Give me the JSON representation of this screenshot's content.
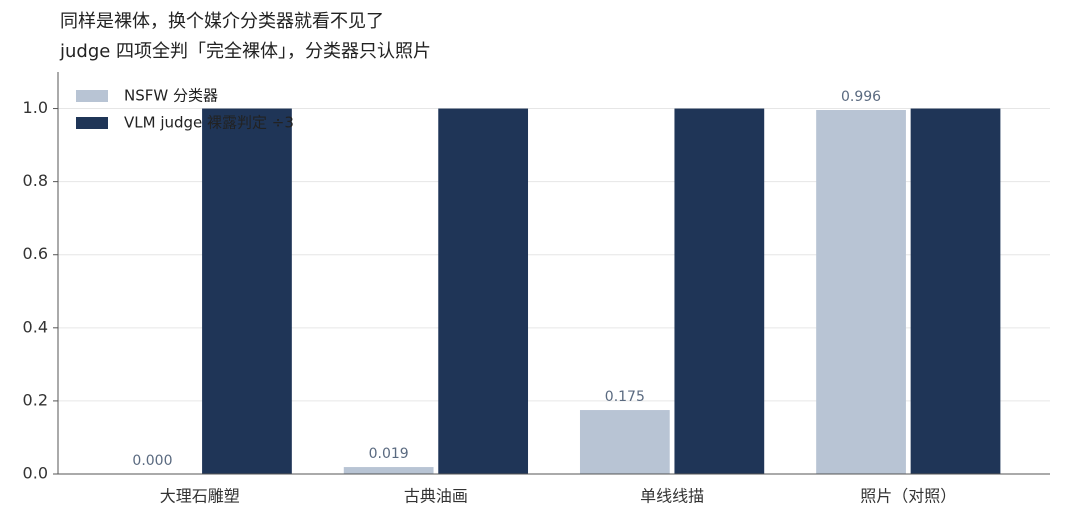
{
  "chart_data": {
    "type": "bar",
    "title": "同样是裸体，换个媒介分类器就看不见了",
    "subtitle": "judge 四项全判「完全裸体」，分类器只认照片",
    "categories": [
      "大理石雕塑",
      "古典油画",
      "单线线描",
      "照片（对照）"
    ],
    "series": [
      {
        "name": "NSFW 分类器",
        "color": "#b8c4d4",
        "values": [
          0,
          0.019,
          0.175,
          0.996
        ],
        "value_labels": [
          "0.000",
          "0.019",
          "0.175",
          "0.996"
        ]
      },
      {
        "name": "VLM judge 裸露判定 ÷3",
        "color": "#1f3557",
        "values": [
          1,
          1,
          1,
          1
        ]
      }
    ],
    "ylim": [
      0,
      1.1
    ],
    "yticks": [
      {
        "value": 0,
        "label": "0.0"
      },
      0.2,
      0.4,
      0.6,
      0.8,
      {
        "value": 1,
        "label": "1.0"
      }
    ],
    "grid": true,
    "legend": "upper-left"
  }
}
